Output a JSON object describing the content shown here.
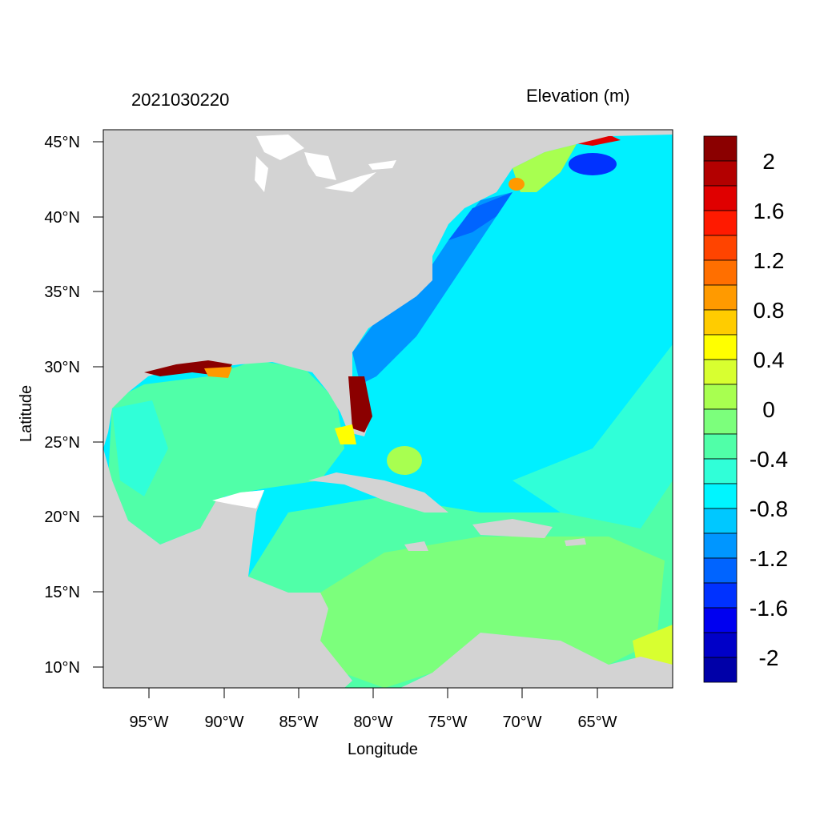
{
  "header": {
    "title_left": "2021030220",
    "title_right": "Elevation (m)"
  },
  "axes": {
    "xlabel": "Longitude",
    "ylabel": "Latitude",
    "x_ticks": [
      "95°W",
      "90°W",
      "85°W",
      "80°W",
      "75°W",
      "70°W",
      "65°W"
    ],
    "y_ticks": [
      "45°N",
      "40°N",
      "35°N",
      "30°N",
      "25°N",
      "20°N",
      "15°N",
      "10°N"
    ]
  },
  "colorbar": {
    "labels": [
      "2",
      "1.6",
      "1.2",
      "0.8",
      "0.4",
      "0",
      "-0.4",
      "-0.8",
      "-1.2",
      "-1.6",
      "-2"
    ],
    "colors": [
      "#8b0000",
      "#b30000",
      "#e00000",
      "#ff1a00",
      "#ff4400",
      "#ff6f00",
      "#ff9a00",
      "#ffcc00",
      "#ffff00",
      "#d8ff30",
      "#a8ff50",
      "#7cff7c",
      "#50ffa8",
      "#30ffd8",
      "#00f5ff",
      "#00c8ff",
      "#0096ff",
      "#0064ff",
      "#0032ff",
      "#0000f0",
      "#0000c8",
      "#0000a8"
    ]
  },
  "map": {
    "land_color": "#d3d3d3",
    "lake_color": "#ffffff",
    "ocean_base": "#00f0ff",
    "gulf_color": "#50ffa8",
    "caribbean_color": "#7cff7c"
  }
}
